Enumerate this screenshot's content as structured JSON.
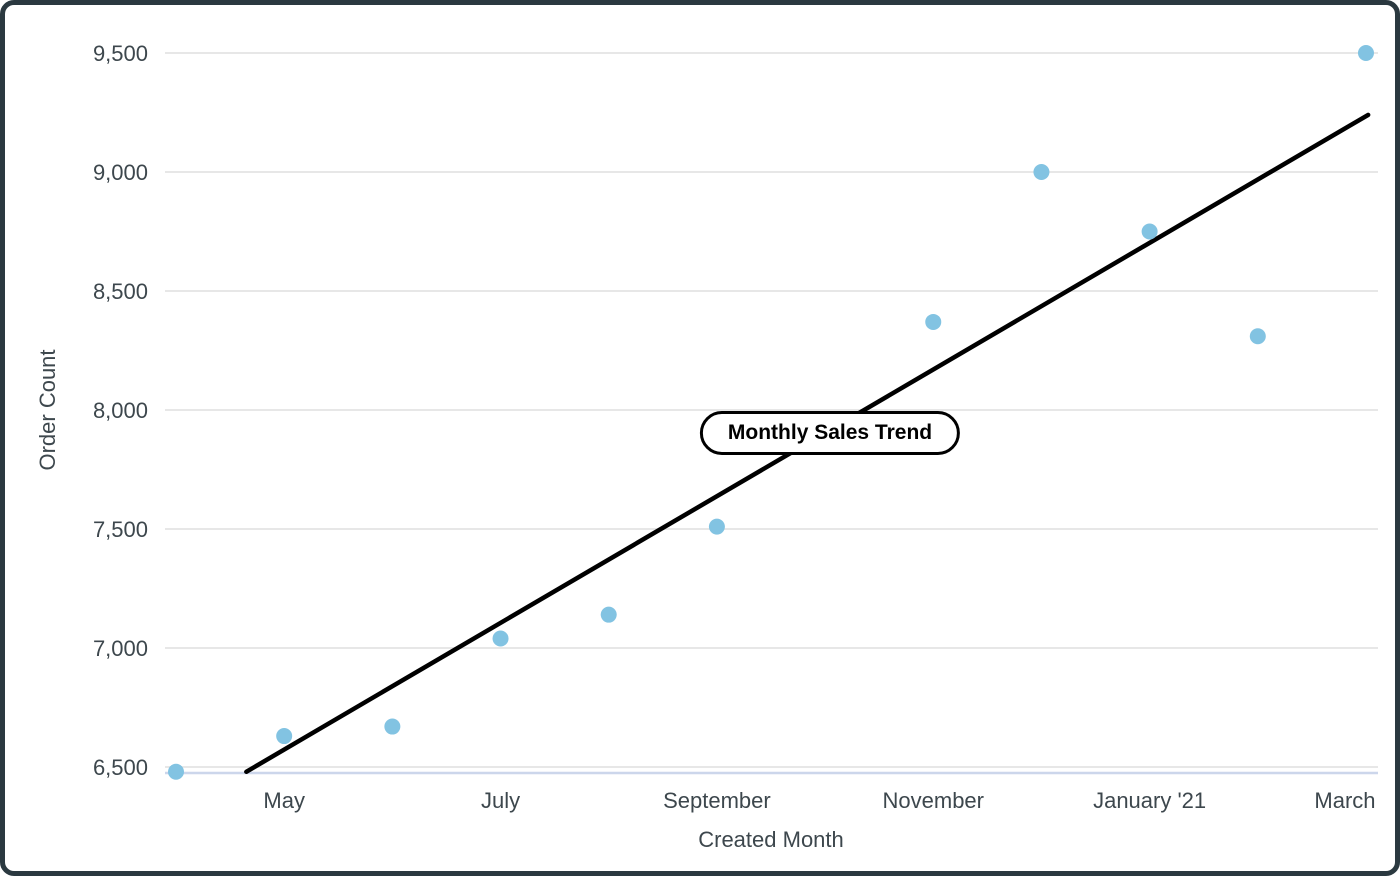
{
  "chart_data": {
    "type": "scatter",
    "annotation": {
      "text": "Monthly Sales Trend"
    },
    "xlabel": "Created Month",
    "ylabel": "Order Count",
    "x_axis": {
      "tick_labels": [
        {
          "label": "May",
          "month_index": 1
        },
        {
          "label": "July",
          "month_index": 3
        },
        {
          "label": "September",
          "month_index": 5
        },
        {
          "label": "November",
          "month_index": 7
        },
        {
          "label": "January '21",
          "month_index": 9
        },
        {
          "label": "March",
          "month_index": 11
        }
      ]
    },
    "y_axis": {
      "ticks": [
        {
          "label": "9,500",
          "value": 9500
        },
        {
          "label": "9,000",
          "value": 9000
        },
        {
          "label": "8,500",
          "value": 8500
        },
        {
          "label": "8,000",
          "value": 8000
        },
        {
          "label": "7,500",
          "value": 7500
        },
        {
          "label": "7,000",
          "value": 7000
        },
        {
          "label": "6,500",
          "value": 6500
        }
      ],
      "min": 6500,
      "max": 9500,
      "step": 500,
      "grid": true
    },
    "series": [
      {
        "name": "Order Count",
        "points": [
          {
            "month": "April",
            "month_index": 0,
            "value": 6480
          },
          {
            "month": "May",
            "month_index": 1,
            "value": 6630
          },
          {
            "month": "June",
            "month_index": 2,
            "value": 6670
          },
          {
            "month": "July",
            "month_index": 3,
            "value": 7040
          },
          {
            "month": "August",
            "month_index": 4,
            "value": 7140
          },
          {
            "month": "September",
            "month_index": 5,
            "value": 7510
          },
          {
            "month": "November",
            "month_index": 7,
            "value": 8370
          },
          {
            "month": "December",
            "month_index": 8,
            "value": 9000
          },
          {
            "month": "January '21",
            "month_index": 9,
            "value": 8750
          },
          {
            "month": "February",
            "month_index": 10,
            "value": 8310
          },
          {
            "month": "March",
            "month_index": 11,
            "value": 9500
          }
        ]
      }
    ],
    "trend_line": {
      "start": {
        "month_index": 0.65,
        "value": 6480
      },
      "end": {
        "month_index": 11.02,
        "value": 9240
      }
    },
    "colors": {
      "point": "#82c3e2",
      "trend_line": "#000000",
      "gridline": "#e7e7e7",
      "axis_line": "#ccd6eb",
      "text": "#3d474d",
      "annotation_border": "#000000",
      "card_border": "#2b3940",
      "background": "#ffffff"
    }
  }
}
